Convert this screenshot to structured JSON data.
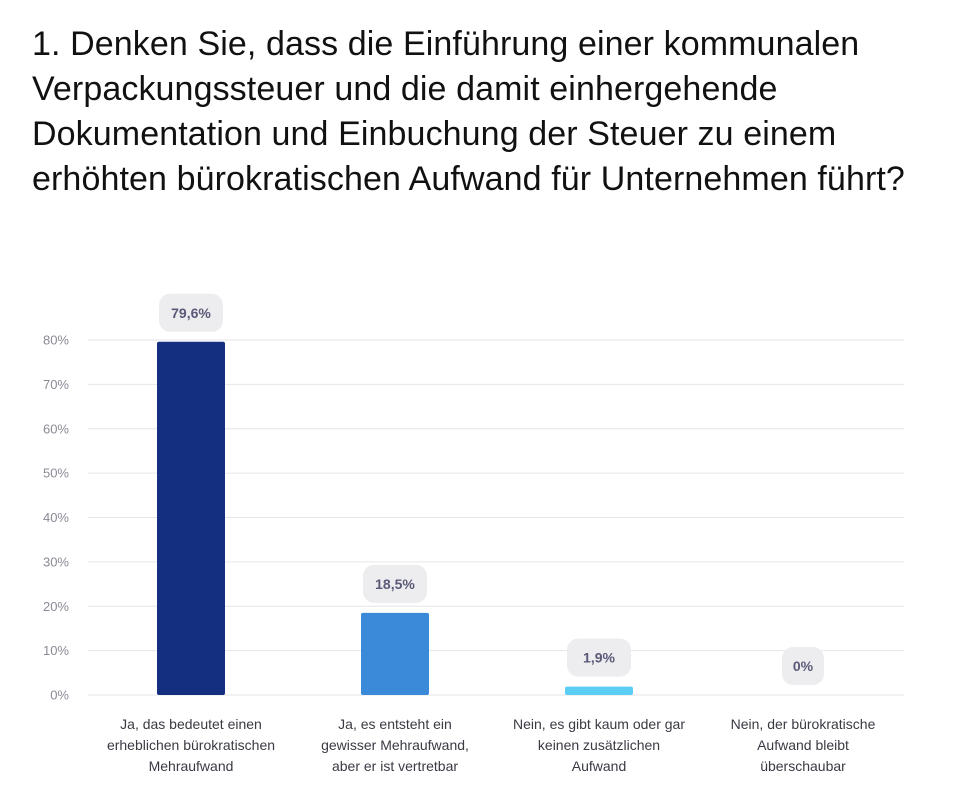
{
  "title": "1. Denken Sie, dass die Einführung einer kommunalen Verpackungssteuer und die damit einhergehende Dokumentation und Einbuchung der Steuer zu einem erhöhten bürokratischen Aufwand für Unternehmen führt?",
  "chart_data": {
    "type": "bar",
    "categories": [
      [
        "Ja, das bedeutet einen",
        "erheblichen bürokratischen",
        "Mehraufwand"
      ],
      [
        "Ja, es entsteht ein",
        "gewisser Mehraufwand,",
        "aber er ist vertretbar"
      ],
      [
        "Nein, es gibt kaum oder gar",
        "keinen zusätzlichen",
        "Aufwand"
      ],
      [
        "Nein, der bürokratische",
        "Aufwand bleibt",
        "überschaubar"
      ]
    ],
    "values": [
      79.6,
      18.5,
      1.9,
      0
    ],
    "data_labels": [
      "79,6%",
      "18,5%",
      "1,9%",
      "0%"
    ],
    "bar_colors": [
      "#142f80",
      "#3a8ad9",
      "#5ccdf5",
      "#5ccdf5"
    ],
    "y_ticks": [
      "0%",
      "10%",
      "20%",
      "30%",
      "40%",
      "50%",
      "60%",
      "70%",
      "80%"
    ],
    "ylim": [
      0,
      80
    ],
    "grid": true,
    "gridline_color": "#e6e6ea",
    "label_bubble_color": "#ededf0"
  }
}
